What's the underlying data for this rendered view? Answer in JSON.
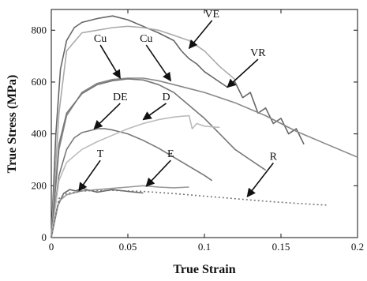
{
  "chart_data": {
    "type": "line",
    "title": "",
    "xlabel": "True Strain",
    "ylabel": "True Stress (MPa)",
    "xlim": [
      0,
      0.2
    ],
    "ylim": [
      0,
      880
    ],
    "xticks": [
      0,
      0.05,
      0.1,
      0.15,
      0.2
    ],
    "yticks": [
      0,
      200,
      400,
      600,
      800
    ],
    "xtick_labels": [
      "0",
      "0.05",
      "0.1",
      "0.15",
      "0.2"
    ],
    "ytick_labels": [
      "0",
      "200",
      "400",
      "600",
      "800"
    ],
    "grid": false,
    "legend": "none",
    "series": [
      {
        "label": "VE",
        "color": "#666666",
        "style": "solid",
        "x": [
          0,
          0.003,
          0.006,
          0.01,
          0.015,
          0.02,
          0.03,
          0.04,
          0.05,
          0.06,
          0.07,
          0.08,
          0.085,
          0.09,
          0.095,
          0.1,
          0.105,
          0.11,
          0.115,
          0.12,
          0.125,
          0.13,
          0.135,
          0.14,
          0.145,
          0.15,
          0.155,
          0.16,
          0.165
        ],
        "y": [
          0,
          400,
          650,
          760,
          810,
          830,
          845,
          855,
          840,
          815,
          790,
          760,
          720,
          690,
          670,
          640,
          620,
          600,
          580,
          600,
          540,
          560,
          480,
          500,
          440,
          460,
          400,
          420,
          360
        ]
      },
      {
        "label": "VR",
        "color": "#aaaaaa",
        "style": "solid",
        "x": [
          0,
          0.005,
          0.01,
          0.02,
          0.03,
          0.04,
          0.05,
          0.06,
          0.07,
          0.08,
          0.09,
          0.1,
          0.11,
          0.12
        ],
        "y": [
          0,
          480,
          720,
          790,
          800,
          810,
          815,
          810,
          800,
          780,
          760,
          720,
          660,
          610
        ]
      },
      {
        "label": "Cu",
        "color": "#888888",
        "style": "solid",
        "x": [
          0,
          0.005,
          0.01,
          0.02,
          0.03,
          0.04,
          0.05,
          0.06,
          0.07,
          0.08,
          0.09,
          0.1,
          0.12,
          0.14,
          0.16,
          0.18,
          0.2
        ],
        "y": [
          0,
          340,
          470,
          560,
          595,
          610,
          615,
          615,
          605,
          590,
          575,
          560,
          520,
          470,
          410,
          360,
          310
        ]
      },
      {
        "label": "Cu",
        "color": "#777777",
        "style": "solid",
        "x": [
          0,
          0.005,
          0.01,
          0.02,
          0.03,
          0.04,
          0.05,
          0.06,
          0.07,
          0.08,
          0.09,
          0.1,
          0.11,
          0.12,
          0.13,
          0.14
        ],
        "y": [
          0,
          360,
          480,
          555,
          590,
          605,
          612,
          608,
          590,
          560,
          510,
          460,
          400,
          340,
          300,
          260
        ]
      },
      {
        "label": "DE",
        "color": "#777777",
        "style": "solid",
        "x": [
          0,
          0.005,
          0.01,
          0.015,
          0.02,
          0.03,
          0.035,
          0.04,
          0.05,
          0.06,
          0.07,
          0.08,
          0.09,
          0.1,
          0.105
        ],
        "y": [
          0,
          240,
          340,
          385,
          405,
          420,
          420,
          415,
          400,
          375,
          345,
          310,
          275,
          240,
          220
        ]
      },
      {
        "label": "D",
        "color": "#bbbbbb",
        "style": "solid",
        "x": [
          0,
          0.005,
          0.01,
          0.02,
          0.03,
          0.04,
          0.05,
          0.06,
          0.07,
          0.08,
          0.085,
          0.09,
          0.092,
          0.095,
          0.1,
          0.11
        ],
        "y": [
          0,
          220,
          290,
          340,
          370,
          395,
          420,
          440,
          455,
          465,
          468,
          470,
          420,
          440,
          430,
          425
        ]
      },
      {
        "label": "T",
        "color": "#666666",
        "style": "solid",
        "x": [
          0,
          0.004,
          0.008,
          0.012,
          0.016,
          0.02,
          0.03,
          0.04,
          0.05,
          0.06
        ],
        "y": [
          0,
          120,
          170,
          185,
          180,
          190,
          175,
          185,
          178,
          172
        ]
      },
      {
        "label": "E",
        "color": "#999999",
        "style": "solid",
        "x": [
          0,
          0.005,
          0.01,
          0.02,
          0.03,
          0.04,
          0.05,
          0.06,
          0.07,
          0.08,
          0.09
        ],
        "y": [
          0,
          140,
          165,
          180,
          185,
          190,
          195,
          200,
          195,
          192,
          195
        ]
      },
      {
        "label": "R",
        "color": "#777777",
        "style": "dotted",
        "x": [
          0,
          0.005,
          0.01,
          0.02,
          0.04,
          0.06,
          0.08,
          0.1,
          0.12,
          0.14,
          0.16,
          0.18
        ],
        "y": [
          0,
          150,
          170,
          180,
          182,
          178,
          170,
          160,
          150,
          140,
          132,
          125
        ]
      }
    ],
    "annotations": [
      {
        "text": "VE",
        "x": 0.105,
        "y": 850,
        "arrow_to": [
          0.09,
          730
        ]
      },
      {
        "text": "VR",
        "x": 0.135,
        "y": 700,
        "arrow_to": [
          0.115,
          580
        ]
      },
      {
        "text": "Cu",
        "x": 0.032,
        "y": 755,
        "arrow_to": [
          0.045,
          615
        ]
      },
      {
        "text": "Cu",
        "x": 0.062,
        "y": 755,
        "arrow_to": [
          0.078,
          605
        ]
      },
      {
        "text": "DE",
        "x": 0.045,
        "y": 530,
        "arrow_to": [
          0.028,
          420
        ]
      },
      {
        "text": "D",
        "x": 0.075,
        "y": 530,
        "arrow_to": [
          0.06,
          455
        ]
      },
      {
        "text": "T",
        "x": 0.032,
        "y": 310,
        "arrow_to": [
          0.018,
          180
        ]
      },
      {
        "text": "E",
        "x": 0.078,
        "y": 310,
        "arrow_to": [
          0.062,
          198
        ]
      },
      {
        "text": "R",
        "x": 0.145,
        "y": 300,
        "arrow_to": [
          0.128,
          158
        ]
      }
    ]
  }
}
